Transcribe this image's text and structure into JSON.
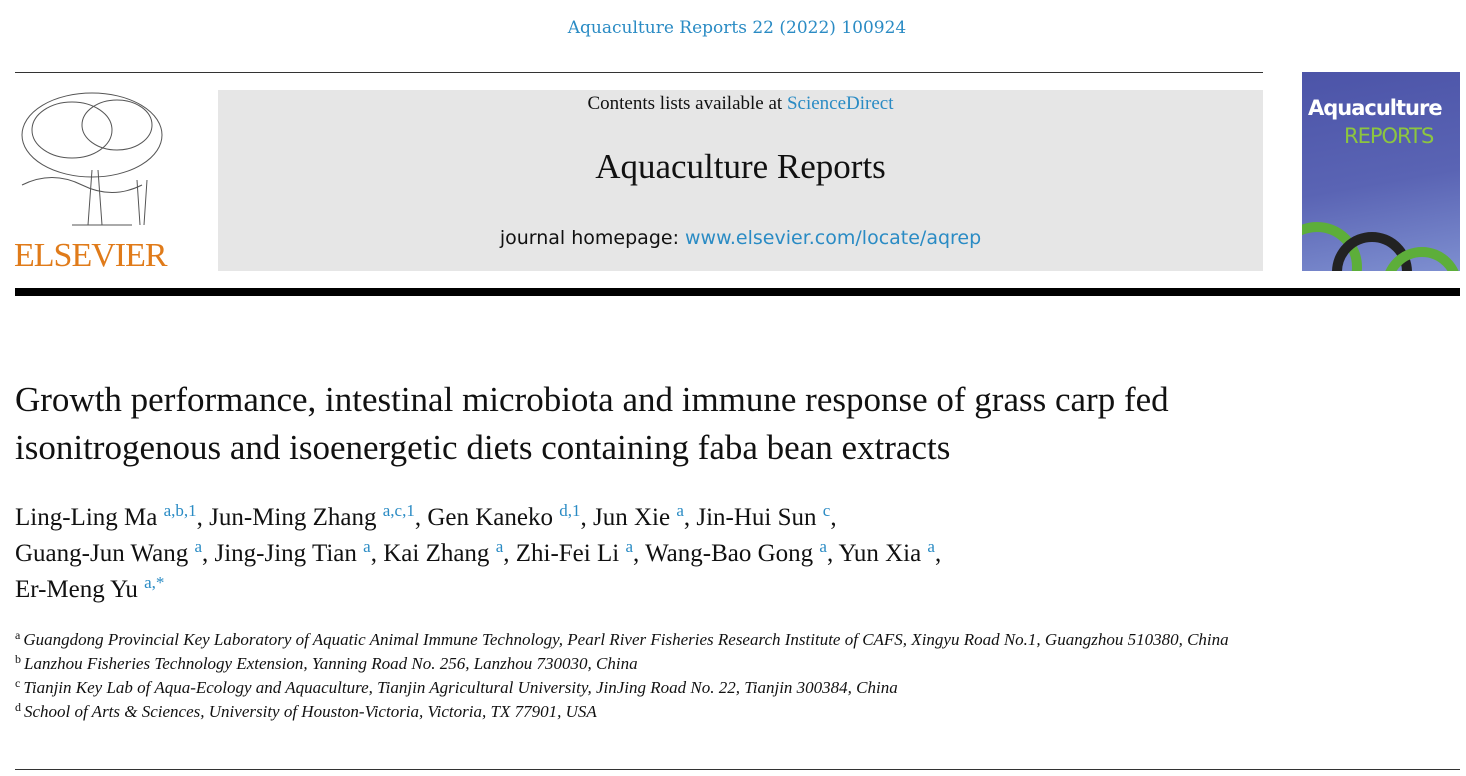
{
  "journal_reference": "Aquaculture Reports 22 (2022) 100924",
  "publisher_logo": {
    "text": "ELSEVIER",
    "color": "#e07b1a"
  },
  "banner": {
    "contents_prefix": "Contents lists available at ",
    "contents_link": "ScienceDirect",
    "journal_title": "Aquaculture Reports",
    "homepage_prefix": "journal homepage: ",
    "homepage_link": "www.elsevier.com/locate/aqrep"
  },
  "cover": {
    "title_line1": "Aquaculture",
    "title_line2": "REPORTS"
  },
  "article": {
    "title": "Growth performance, intestinal microbiota and immune response of grass carp fed isonitrogenous and isoenergetic diets containing faba bean extracts",
    "authors": [
      {
        "name": "Ling-Ling Ma",
        "sup": "a,b,1"
      },
      {
        "name": "Jun-Ming Zhang",
        "sup": "a,c,1"
      },
      {
        "name": "Gen Kaneko",
        "sup": "d,1"
      },
      {
        "name": "Jun Xie",
        "sup": "a"
      },
      {
        "name": "Jin-Hui Sun",
        "sup": "c"
      },
      {
        "name": "Guang-Jun Wang",
        "sup": "a"
      },
      {
        "name": "Jing-Jing Tian",
        "sup": "a"
      },
      {
        "name": "Kai Zhang",
        "sup": "a"
      },
      {
        "name": "Zhi-Fei Li",
        "sup": "a"
      },
      {
        "name": "Wang-Bao Gong",
        "sup": "a"
      },
      {
        "name": "Yun Xia",
        "sup": "a"
      },
      {
        "name": "Er-Meng Yu",
        "sup": "a,*"
      }
    ],
    "affiliations": [
      {
        "key": "a",
        "text": "Guangdong Provincial Key Laboratory of Aquatic Animal Immune Technology, Pearl River Fisheries Research Institute of CAFS, Xingyu Road No.1, Guangzhou 510380, China"
      },
      {
        "key": "b",
        "text": "Lanzhou Fisheries Technology Extension, Yanning Road No. 256, Lanzhou 730030, China"
      },
      {
        "key": "c",
        "text": "Tianjin Key Lab of Aqua-Ecology and Aquaculture, Tianjin Agricultural University, JinJing Road No. 22, Tianjin 300384, China"
      },
      {
        "key": "d",
        "text": "School of Arts & Sciences, University of Houston-Victoria, Victoria, TX 77901, USA"
      }
    ]
  },
  "colors": {
    "link": "#2a8bc4",
    "banner_bg": "#e6e6e6"
  }
}
